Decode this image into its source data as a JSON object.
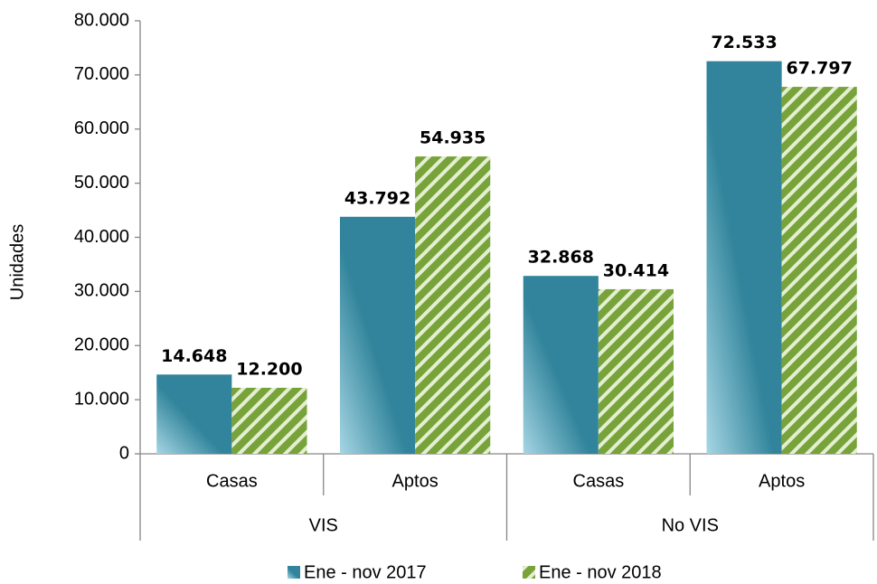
{
  "chart_data": {
    "type": "bar",
    "y_label": "Unidades",
    "groups": [
      {
        "name": "VIS",
        "categories": [
          "Casas",
          "Aptos"
        ]
      },
      {
        "name": "No VIS",
        "categories": [
          "Casas",
          "Aptos"
        ]
      }
    ],
    "series": [
      {
        "name": "Ene - nov 2017",
        "color": "#31849b",
        "label_color": "#2a6f82",
        "values": [
          14648,
          43792,
          32868,
          72533
        ],
        "value_labels": [
          "14.648",
          "43.792",
          "32.868",
          "72.533"
        ]
      },
      {
        "name": "Ene - nov 2018",
        "color": "#77a33a",
        "label_color": "#5e7d2a",
        "pattern": "stripes",
        "values": [
          12200,
          54935,
          30414,
          67797
        ],
        "value_labels": [
          "12.200",
          "54.935",
          "30.414",
          "67.797"
        ]
      }
    ],
    "ylim": [
      0,
      80000
    ],
    "yticks": [
      0,
      {
        "value": 10000,
        "label": "10.000"
      },
      {
        "value": 20000,
        "label": "20.000"
      },
      {
        "value": 30000,
        "label": "30.000"
      },
      {
        "value": 40000,
        "label": "40.000"
      },
      {
        "value": 50000,
        "label": "50.000"
      },
      {
        "value": 60000,
        "label": "60.000"
      },
      {
        "value": 70000,
        "label": "70.000"
      },
      {
        "value": 80000,
        "label": "80.000"
      }
    ],
    "grid": false,
    "legend": "bottom"
  }
}
